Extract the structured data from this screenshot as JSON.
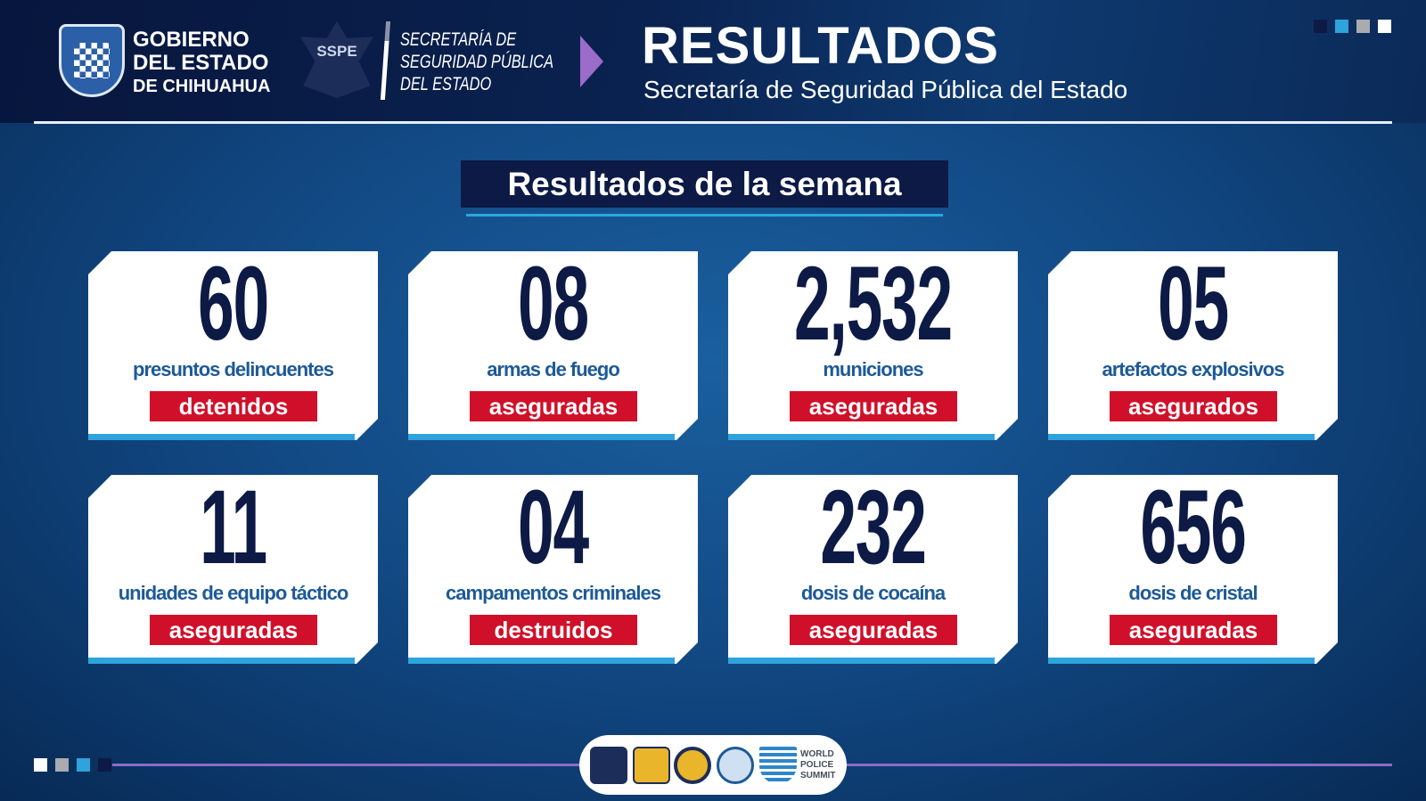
{
  "header": {
    "gov_logo_text": [
      "GOBIERNO",
      "DEL ESTADO",
      "DE CHIHUAHUA"
    ],
    "sspe_badge": "SSPE",
    "secretaria_text": [
      "SECRETARÍA DE",
      "SEGURIDAD PÚBLICA",
      "DEL ESTADO"
    ],
    "title": "RESULTADOS",
    "subtitle": "Secretaría de Seguridad Pública del Estado"
  },
  "section_title": "Resultados de la semana",
  "cards": [
    {
      "value": "60",
      "label": "presuntos delincuentes",
      "status": "detenidos"
    },
    {
      "value": "08",
      "label": "armas de fuego",
      "status": "aseguradas"
    },
    {
      "value": "2,532",
      "label": "municiones",
      "status": "aseguradas"
    },
    {
      "value": "05",
      "label": "artefactos explosivos",
      "status": "asegurados"
    },
    {
      "value": "11",
      "label": "unidades de equipo táctico",
      "status": "aseguradas"
    },
    {
      "value": "04",
      "label": "campamentos criminales",
      "status": "destruidos"
    },
    {
      "value": "232",
      "label": "dosis de cocaína",
      "status": "aseguradas"
    },
    {
      "value": "656",
      "label": "dosis de cristal",
      "status": "aseguradas"
    }
  ],
  "footer": {
    "logos": [
      "SSPE",
      "CALEA",
      "CALEA",
      "CALEA",
      "WORLD POLICE SUMMIT"
    ],
    "wps_text": [
      "WORLD",
      "POLICE",
      "SUMMIT"
    ]
  },
  "colors": {
    "navy": "#0c1a45",
    "accent_blue": "#2ea3dc",
    "red": "#d0102a",
    "purple": "#9b6cc8",
    "label_blue": "#1d5a96",
    "grey": "#a9abb0",
    "white": "#ffffff"
  }
}
